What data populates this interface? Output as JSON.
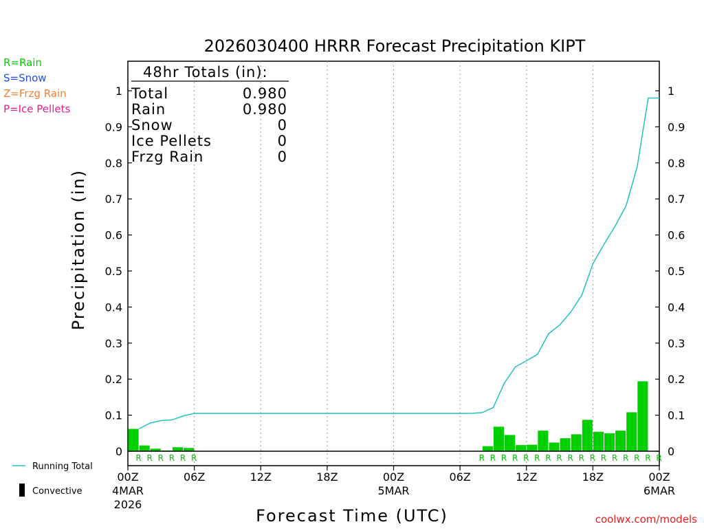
{
  "chart_data": {
    "type": "bar",
    "title": "2026030400 HRRR Forecast Precipitation KIPT",
    "ylabel": "Precipitation (in)",
    "xlabel": "Forecast Time (UTC)",
    "ylim": [
      0,
      1.05
    ],
    "y_ticks": [
      "0",
      "0.1",
      "0.2",
      "0.3",
      "0.4",
      "0.5",
      "0.6",
      "0.7",
      "0.8",
      "0.9",
      "1"
    ],
    "y_tick_values": [
      0,
      0.1,
      0.2,
      0.3,
      0.4,
      0.5,
      0.6,
      0.7,
      0.8,
      0.9,
      1
    ],
    "x_range_hours": [
      0,
      48
    ],
    "x_ticks": [
      {
        "hour": 0,
        "label": "00Z",
        "sub1": "4MAR",
        "sub2": "2026"
      },
      {
        "hour": 6,
        "label": "06Z"
      },
      {
        "hour": 12,
        "label": "12Z"
      },
      {
        "hour": 18,
        "label": "18Z"
      },
      {
        "hour": 24,
        "label": "00Z",
        "sub1": "5MAR"
      },
      {
        "hour": 30,
        "label": "06Z"
      },
      {
        "hour": 36,
        "label": "12Z"
      },
      {
        "hour": 42,
        "label": "18Z"
      },
      {
        "hour": 48,
        "label": "00Z",
        "sub1": "6MAR"
      }
    ],
    "hourly_precip": {
      "hours": [
        1,
        2,
        3,
        4,
        5,
        6,
        33,
        34,
        35,
        36,
        37,
        38,
        39,
        40,
        41,
        42,
        43,
        44,
        45,
        46,
        47,
        48
      ],
      "values": [
        0.062,
        0.016,
        0.007,
        0.002,
        0.011,
        0.009,
        0.014,
        0.068,
        0.045,
        0.017,
        0.018,
        0.057,
        0.024,
        0.036,
        0.047,
        0.087,
        0.054,
        0.05,
        0.057,
        0.108,
        0.194,
        0.0
      ],
      "types": [
        "R",
        "R",
        "R",
        "R",
        "R",
        "R",
        "R",
        "R",
        "R",
        "R",
        "R",
        "R",
        "R",
        "R",
        "R",
        "R",
        "R",
        "R",
        "R",
        "R",
        "R",
        "R"
      ]
    },
    "ptype_extra_hours": [
      32
    ],
    "running_total": {
      "hours": [
        1,
        2,
        3,
        4,
        5,
        6,
        31,
        32,
        33,
        34,
        35,
        36,
        37,
        38,
        39,
        40,
        41,
        42,
        43,
        44,
        45,
        46,
        47,
        48
      ],
      "values": [
        0.062,
        0.078,
        0.085,
        0.087,
        0.098,
        0.105,
        0.105,
        0.107,
        0.121,
        0.189,
        0.234,
        0.251,
        0.269,
        0.326,
        0.35,
        0.386,
        0.433,
        0.52,
        0.574,
        0.624,
        0.681,
        0.789,
        0.98,
        0.98
      ]
    },
    "totals_box": {
      "heading": "48hr Totals (in):",
      "rows": [
        {
          "label": "Total",
          "value": "0.980"
        },
        {
          "label": "Rain",
          "value": "0.980"
        },
        {
          "label": "Snow",
          "value": "0"
        },
        {
          "label": "Ice Pellets",
          "value": "0"
        },
        {
          "label": "Frzg Rain",
          "value": "0"
        }
      ]
    },
    "ptype_legend": [
      {
        "text": "R=Rain",
        "color": "#00cc00"
      },
      {
        "text": "S=Snow",
        "color": "#2050e0"
      },
      {
        "text": "Z=Frzg Rain",
        "color": "#f08030"
      },
      {
        "text": "P=Ice Pellets",
        "color": "#e0208a"
      }
    ],
    "series_legend": {
      "running_total_label": "Running Total",
      "convective_label": "Convective"
    },
    "colors": {
      "bar": "#00d000",
      "running_total": "#20c0c0",
      "ptype_rain": "#00c000",
      "credit": "#e02020"
    },
    "credit": "coolwx.com/models"
  }
}
